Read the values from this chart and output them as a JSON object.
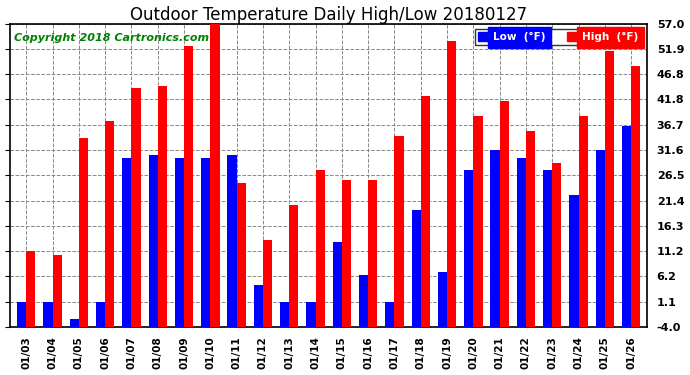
{
  "title": "Outdoor Temperature Daily High/Low 20180127",
  "copyright": "Copyright 2018 Cartronics.com",
  "categories": [
    "01/03",
    "01/04",
    "01/05",
    "01/06",
    "01/07",
    "01/08",
    "01/09",
    "01/10",
    "01/11",
    "01/12",
    "01/13",
    "01/14",
    "01/15",
    "01/16",
    "01/17",
    "01/18",
    "01/19",
    "01/20",
    "01/21",
    "01/22",
    "01/23",
    "01/24",
    "01/25",
    "01/26"
  ],
  "high_values": [
    11.2,
    10.5,
    34.0,
    37.5,
    44.0,
    44.5,
    52.5,
    57.0,
    25.0,
    13.5,
    20.5,
    27.5,
    25.5,
    25.5,
    34.5,
    42.5,
    53.5,
    38.5,
    41.5,
    35.5,
    29.0,
    38.5,
    51.5,
    48.5
  ],
  "low_values": [
    1.1,
    1.1,
    -2.5,
    1.1,
    30.0,
    30.5,
    30.0,
    30.0,
    30.5,
    4.5,
    1.1,
    1.1,
    13.0,
    6.5,
    1.1,
    19.5,
    7.0,
    27.5,
    31.5,
    30.0,
    27.5,
    22.5,
    31.5,
    36.5
  ],
  "yticks": [
    -4.0,
    1.1,
    6.2,
    11.2,
    16.3,
    21.4,
    26.5,
    31.6,
    36.7,
    41.8,
    46.8,
    51.9,
    57.0
  ],
  "ymin": -4.0,
  "ymax": 57.0,
  "bar_color_high": "#ff0000",
  "bar_color_low": "#0000ff",
  "background_color": "#ffffff",
  "plot_bg_color": "#ffffff",
  "grid_color": "#888888",
  "title_fontsize": 12,
  "copyright_fontsize": 8,
  "legend_label_low": "Low  (°F)",
  "legend_label_high": "High  (°F)",
  "bar_width": 0.35,
  "figwidth": 6.9,
  "figheight": 3.75,
  "dpi": 100
}
